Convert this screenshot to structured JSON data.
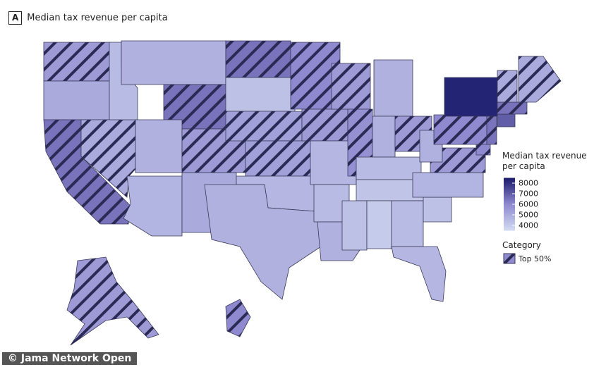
{
  "chart_data": {
    "type": "choropleth",
    "panel_label": "A",
    "title": "Median tax revenue per capita",
    "legend_title": "Median tax revenue per capita",
    "values": [
      5500,
      5000,
      6500,
      5000,
      4500,
      4800,
      6500,
      4800,
      5500,
      4700,
      5000,
      6500,
      4300,
      5300,
      5300,
      4600,
      4800,
      6000,
      5500,
      4600,
      4500,
      4800,
      5500,
      5800,
      4800,
      4800,
      5500,
      4500,
      4200,
      4300,
      4000,
      4500,
      4600,
      4300,
      4700,
      5500,
      4800,
      6000,
      8300,
      6500,
      6000,
      7000,
      6500,
      5000,
      5000,
      5500,
      6000
    ],
    "top50": [
      true,
      false,
      true,
      true,
      false,
      false,
      true,
      false,
      true,
      false,
      false,
      true,
      false,
      true,
      true,
      false,
      false,
      true,
      true,
      false,
      false,
      false,
      true,
      true,
      false,
      false,
      true,
      false,
      false,
      false,
      false,
      false,
      false,
      false,
      false,
      true,
      false,
      true,
      false,
      true,
      true,
      false,
      true,
      true,
      true,
      true,
      true
    ],
    "clim": [
      3500,
      8500
    ],
    "colors": [
      "#d3dcf1",
      "#8f89cf",
      "#1b1b6c"
    ],
    "colorbar_ticks": [
      8000,
      7000,
      6000,
      5000,
      4000
    ],
    "category_title": "Category",
    "category_label": "Top 50%",
    "hatch_color": "#2a2a55",
    "watermark": "© Jama Network Open"
  }
}
